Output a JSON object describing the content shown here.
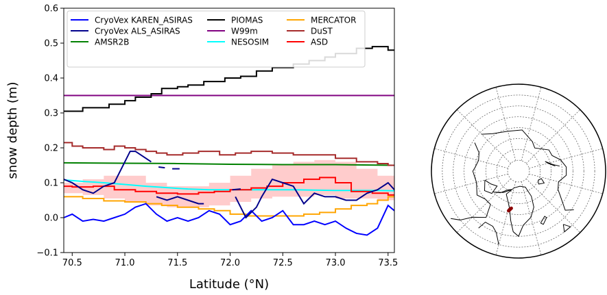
{
  "chart_data": [
    {
      "type": "line",
      "xlabel": "Latitude (°N)",
      "ylabel": "snow depth (m)",
      "xlim": [
        70.42,
        73.56
      ],
      "ylim": [
        -0.1,
        0.6
      ],
      "xticks": [
        70.5,
        71.0,
        71.5,
        72.0,
        72.5,
        73.0,
        73.5
      ],
      "xtick_labels": [
        "70.5",
        "71.0",
        "71.5",
        "72.0",
        "72.5",
        "73.0",
        "73.5"
      ],
      "yticks": [
        -0.1,
        0.0,
        0.1,
        0.2,
        0.3,
        0.4,
        0.5,
        0.6
      ],
      "ytick_labels": [
        "−0.1",
        "0.0",
        "0.1",
        "0.2",
        "0.3",
        "0.4",
        "0.5",
        "0.6"
      ],
      "grid": false,
      "legend_position": "top",
      "series": [
        {
          "name": "CryoVex KAREN_ASIRAS",
          "color": "#0000ff",
          "style": "line",
          "x": [
            70.42,
            70.5,
            70.6,
            70.7,
            70.8,
            70.9,
            71.0,
            71.1,
            71.2,
            71.3,
            71.4,
            71.5,
            71.6,
            71.7,
            71.8,
            71.9,
            72.0,
            72.1,
            72.2,
            72.3,
            72.4,
            72.5,
            72.6,
            72.7,
            72.8,
            72.9,
            73.0,
            73.1,
            73.2,
            73.3,
            73.4,
            73.5,
            73.56
          ],
          "y": [
            0.0,
            0.01,
            -0.01,
            -0.005,
            -0.01,
            0.0,
            0.01,
            0.03,
            0.04,
            0.01,
            -0.01,
            0.0,
            -0.01,
            0.0,
            0.02,
            0.01,
            -0.02,
            -0.01,
            0.02,
            -0.01,
            0.0,
            0.02,
            -0.02,
            -0.02,
            -0.01,
            -0.02,
            -0.01,
            -0.03,
            -0.045,
            -0.05,
            -0.03,
            0.035,
            0.02
          ]
        },
        {
          "name": "CryoVex ALS_ASIRAS",
          "color": "#00008b",
          "style": "segments",
          "segments": [
            {
              "x": [
                70.42,
                70.5,
                70.6,
                70.7,
                70.8,
                70.9,
                71.0,
                71.05,
                71.1,
                71.15,
                71.2,
                71.25
              ],
              "y": [
                0.11,
                0.1,
                0.08,
                0.07,
                0.09,
                0.1,
                0.16,
                0.19,
                0.19,
                0.18,
                0.17,
                0.16
              ]
            },
            {
              "x": [
                71.32,
                71.38
              ],
              "y": [
                0.145,
                0.143
              ]
            },
            {
              "x": [
                71.45,
                71.52
              ],
              "y": [
                0.14,
                0.14
              ]
            },
            {
              "x": [
                71.3,
                71.4,
                71.5,
                71.6,
                71.7,
                71.75
              ],
              "y": [
                0.06,
                0.05,
                0.06,
                0.05,
                0.04,
                0.04
              ]
            },
            {
              "x": [
                72.02,
                72.1
              ],
              "y": [
                0.08,
                0.082
              ]
            },
            {
              "x": [
                72.05,
                72.15,
                72.25,
                72.3,
                72.4,
                72.5,
                72.6,
                72.7,
                72.8,
                72.9,
                73.0,
                73.1,
                73.2,
                73.3,
                73.4,
                73.5,
                73.56
              ],
              "y": [
                0.06,
                0.0,
                0.03,
                0.06,
                0.11,
                0.1,
                0.09,
                0.04,
                0.07,
                0.06,
                0.06,
                0.05,
                0.05,
                0.07,
                0.08,
                0.1,
                0.08
              ]
            }
          ]
        },
        {
          "name": "AMSR2B",
          "color": "#008000",
          "style": "line",
          "x": [
            70.42,
            71.0,
            71.5,
            72.0,
            72.5,
            73.0,
            73.56
          ],
          "y": [
            0.157,
            0.156,
            0.155,
            0.153,
            0.152,
            0.152,
            0.15
          ]
        },
        {
          "name": "PIOMAS",
          "color": "#000000",
          "style": "step",
          "x": [
            70.42,
            70.6,
            70.85,
            71.0,
            71.1,
            71.25,
            71.35,
            71.5,
            71.6,
            71.75,
            71.95,
            72.1,
            72.25,
            72.4,
            72.6,
            72.75,
            72.9,
            73.0,
            73.2,
            73.35,
            73.5
          ],
          "y": [
            0.305,
            0.315,
            0.325,
            0.335,
            0.345,
            0.355,
            0.37,
            0.375,
            0.38,
            0.39,
            0.4,
            0.405,
            0.42,
            0.43,
            0.44,
            0.45,
            0.46,
            0.47,
            0.485,
            0.49,
            0.48
          ]
        },
        {
          "name": "W99m",
          "color": "#800080",
          "style": "line",
          "x": [
            70.42,
            73.56
          ],
          "y": [
            0.35,
            0.35
          ]
        },
        {
          "name": "NESOSIM",
          "color": "#00ffff",
          "style": "line",
          "x": [
            70.42,
            70.6,
            70.8,
            71.0,
            71.2,
            71.4,
            71.6,
            71.8,
            72.0,
            72.2,
            72.4,
            72.6,
            72.8,
            73.0,
            73.2,
            73.4,
            73.56
          ],
          "y": [
            0.108,
            0.104,
            0.1,
            0.095,
            0.09,
            0.086,
            0.082,
            0.08,
            0.08,
            0.08,
            0.08,
            0.08,
            0.079,
            0.078,
            0.078,
            0.078,
            0.077
          ]
        },
        {
          "name": "MERCATOR",
          "color": "#ffa500",
          "style": "step",
          "x": [
            70.42,
            70.6,
            70.8,
            71.0,
            71.2,
            71.35,
            71.5,
            71.7,
            71.85,
            72.0,
            72.15,
            72.3,
            72.5,
            72.7,
            72.85,
            73.0,
            73.15,
            73.3,
            73.4,
            73.5
          ],
          "y": [
            0.06,
            0.055,
            0.048,
            0.045,
            0.04,
            0.035,
            0.03,
            0.025,
            0.02,
            0.01,
            0.005,
            0.005,
            0.005,
            0.01,
            0.015,
            0.025,
            0.035,
            0.04,
            0.05,
            0.06
          ]
        },
        {
          "name": "DuST",
          "color": "#a52a2a",
          "style": "step",
          "x": [
            70.42,
            70.5,
            70.6,
            70.8,
            70.9,
            71.0,
            71.1,
            71.2,
            71.3,
            71.4,
            71.55,
            71.7,
            71.9,
            72.05,
            72.2,
            72.4,
            72.6,
            72.8,
            73.0,
            73.2,
            73.4,
            73.5
          ],
          "y": [
            0.215,
            0.205,
            0.2,
            0.195,
            0.205,
            0.2,
            0.195,
            0.19,
            0.185,
            0.18,
            0.185,
            0.19,
            0.18,
            0.185,
            0.19,
            0.185,
            0.18,
            0.18,
            0.17,
            0.16,
            0.155,
            0.15
          ]
        },
        {
          "name": "ASD",
          "color": "#ff0000",
          "style": "step",
          "x": [
            70.42,
            70.5,
            70.7,
            70.9,
            71.1,
            71.3,
            71.5,
            71.7,
            71.85,
            72.0,
            72.2,
            72.35,
            72.5,
            72.7,
            72.85,
            73.0,
            73.15,
            73.35,
            73.5
          ],
          "y": [
            0.09,
            0.088,
            0.09,
            0.08,
            0.075,
            0.07,
            0.068,
            0.072,
            0.075,
            0.08,
            0.085,
            0.09,
            0.1,
            0.11,
            0.115,
            0.1,
            0.075,
            0.07,
            0.065
          ]
        }
      ],
      "band": {
        "color": "#ffb6b6",
        "x": [
          70.42,
          70.6,
          70.8,
          71.0,
          71.2,
          71.4,
          71.6,
          71.8,
          72.0,
          72.2,
          72.4,
          72.6,
          72.8,
          73.0,
          73.2,
          73.4,
          73.56
        ],
        "upper": [
          0.1,
          0.11,
          0.12,
          0.12,
          0.1,
          0.09,
          0.09,
          0.1,
          0.12,
          0.14,
          0.15,
          0.16,
          0.165,
          0.16,
          0.14,
          0.12,
          0.1
        ],
        "lower": [
          0.07,
          0.065,
          0.055,
          0.045,
          0.035,
          0.03,
          0.03,
          0.035,
          0.045,
          0.055,
          0.06,
          0.06,
          0.065,
          0.055,
          0.055,
          0.05,
          0.05
        ]
      }
    }
  ],
  "map": {
    "type": "polar-stereographic",
    "pole": "north",
    "track_color": "#8b0000",
    "track": [
      [
        -56,
        72.6
      ],
      [
        -59,
        71.2
      ]
    ]
  }
}
